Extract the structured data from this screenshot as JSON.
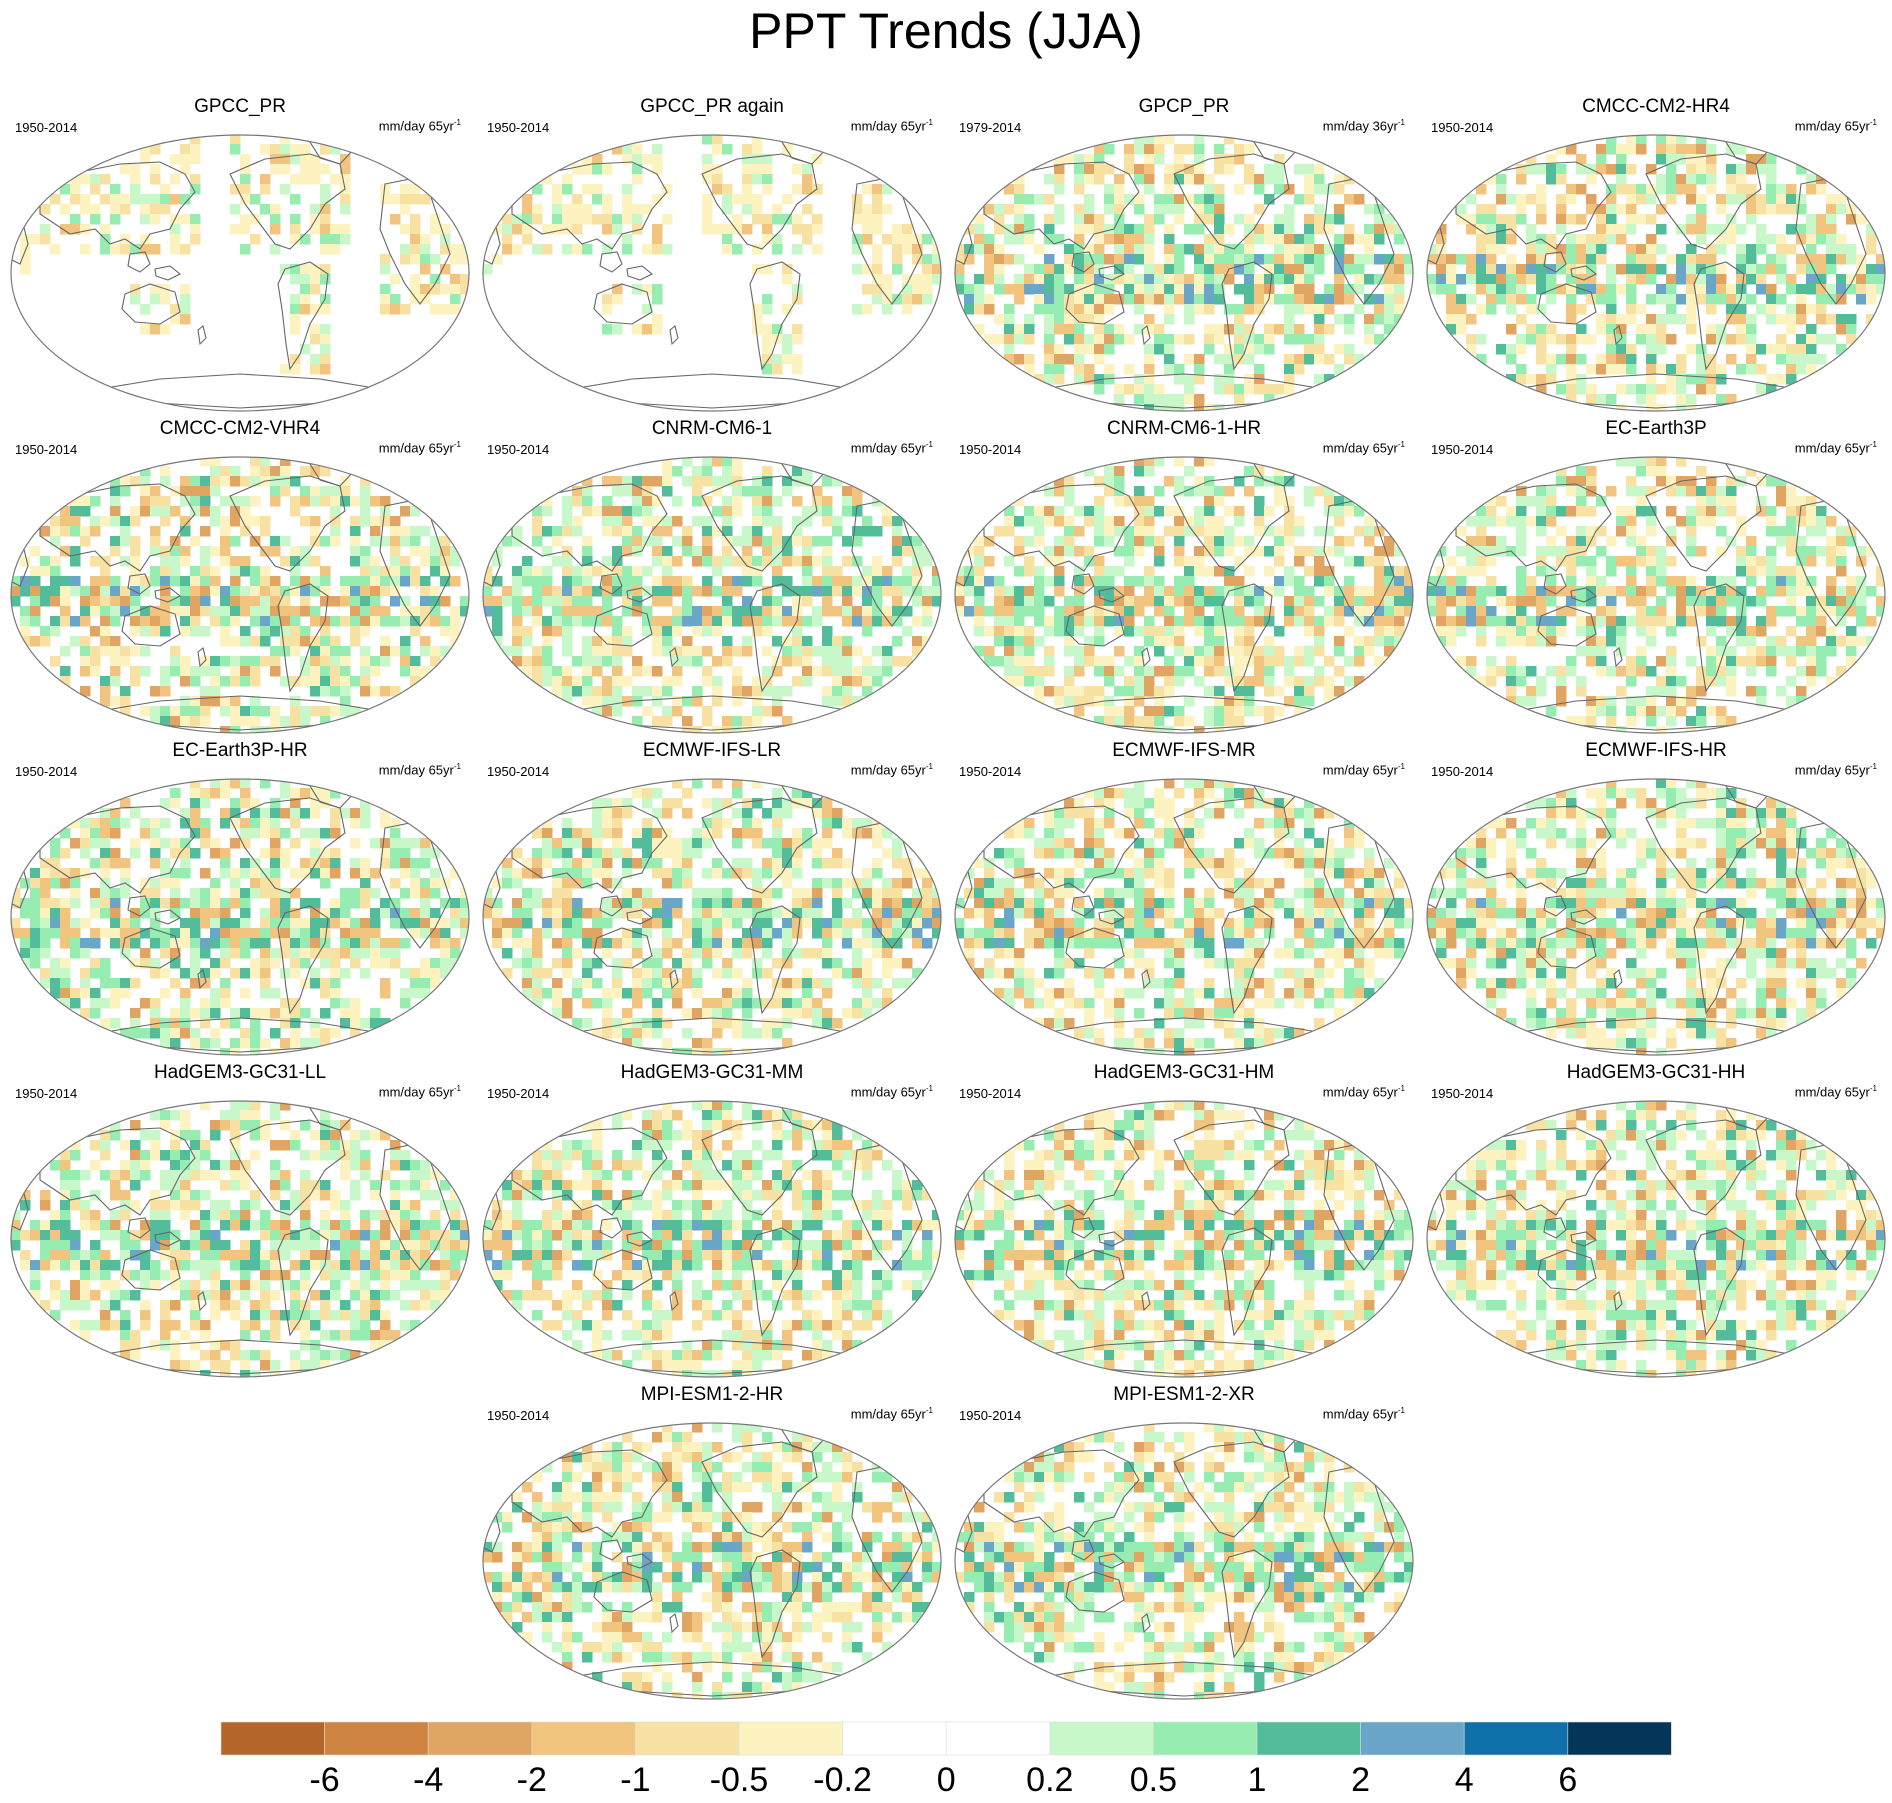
{
  "title": "PPT Trends (JJA)",
  "colors": [
    "#b5672b",
    "#cd8541",
    "#e1a563",
    "#f1c57f",
    "#f7e1a3",
    "#fdf3c0",
    "#ffffff",
    "#ffffff",
    "#c8f7c9",
    "#97ecb2",
    "#52bc9b",
    "#6aa6c7",
    "#0f6fa8",
    "#06355a"
  ],
  "panels": [
    {
      "title": "GPCC_PR",
      "period": "1950-2014",
      "units": "mm/day 65yr",
      "exp": "-1",
      "kind": "obs"
    },
    {
      "title": "GPCC_PR again",
      "period": "1950-2014",
      "units": "mm/day 65yr",
      "exp": "-1",
      "kind": "obs"
    },
    {
      "title": "GPCP_PR",
      "period": "1979-2014",
      "units": "mm/day 36yr",
      "exp": "-1",
      "kind": "model"
    },
    {
      "title": "CMCC-CM2-HR4",
      "period": "1950-2014",
      "units": "mm/day 65yr",
      "exp": "-1",
      "kind": "model"
    },
    {
      "title": "CMCC-CM2-VHR4",
      "period": "1950-2014",
      "units": "mm/day 65yr",
      "exp": "-1",
      "kind": "model"
    },
    {
      "title": "CNRM-CM6-1",
      "period": "1950-2014",
      "units": "mm/day 65yr",
      "exp": "-1",
      "kind": "model"
    },
    {
      "title": "CNRM-CM6-1-HR",
      "period": "1950-2014",
      "units": "mm/day 65yr",
      "exp": "-1",
      "kind": "model"
    },
    {
      "title": "EC-Earth3P",
      "period": "1950-2014",
      "units": "mm/day 65yr",
      "exp": "-1",
      "kind": "model"
    },
    {
      "title": "EC-Earth3P-HR",
      "period": "1950-2014",
      "units": "mm/day 65yr",
      "exp": "-1",
      "kind": "model"
    },
    {
      "title": "ECMWF-IFS-LR",
      "period": "1950-2014",
      "units": "mm/day 65yr",
      "exp": "-1",
      "kind": "model"
    },
    {
      "title": "ECMWF-IFS-MR",
      "period": "1950-2014",
      "units": "mm/day 65yr",
      "exp": "-1",
      "kind": "model"
    },
    {
      "title": "ECMWF-IFS-HR",
      "period": "1950-2014",
      "units": "mm/day 65yr",
      "exp": "-1",
      "kind": "model"
    },
    {
      "title": "HadGEM3-GC31-LL",
      "period": "1950-2014",
      "units": "mm/day 65yr",
      "exp": "-1",
      "kind": "model"
    },
    {
      "title": "HadGEM3-GC31-MM",
      "period": "1950-2014",
      "units": "mm/day 65yr",
      "exp": "-1",
      "kind": "model"
    },
    {
      "title": "HadGEM3-GC31-HM",
      "period": "1950-2014",
      "units": "mm/day 65yr",
      "exp": "-1",
      "kind": "model"
    },
    {
      "title": "HadGEM3-GC31-HH",
      "period": "1950-2014",
      "units": "mm/day 65yr",
      "exp": "-1",
      "kind": "model"
    },
    {
      "title": "MPI-ESM1-2-HR",
      "period": "1950-2014",
      "units": "mm/day 65yr",
      "exp": "-1",
      "kind": "model"
    },
    {
      "title": "MPI-ESM1-2-XR",
      "period": "1950-2014",
      "units": "mm/day 65yr",
      "exp": "-1",
      "kind": "model"
    }
  ],
  "colorbar": {
    "labels": [
      "-6",
      "-4",
      "-2",
      "-1",
      "-0.5",
      "-0.2",
      "0",
      "0.2",
      "0.5",
      "1",
      "2",
      "4",
      "6"
    ]
  },
  "chart_data": {
    "type": "heatmap",
    "title": "PPT Trends (JJA)",
    "colorbar_levels": [
      -6,
      -4,
      -2,
      -1,
      -0.5,
      -0.2,
      0,
      0.2,
      0.5,
      1,
      2,
      4,
      6
    ],
    "series": [
      {
        "name": "GPCC_PR",
        "period": "1950-2014"
      },
      {
        "name": "GPCC_PR again",
        "period": "1950-2014"
      },
      {
        "name": "GPCP_PR",
        "period": "1979-2014"
      },
      {
        "name": "CMCC-CM2-HR4",
        "period": "1950-2014"
      },
      {
        "name": "CMCC-CM2-VHR4",
        "period": "1950-2014"
      },
      {
        "name": "CNRM-CM6-1",
        "period": "1950-2014"
      },
      {
        "name": "CNRM-CM6-1-HR",
        "period": "1950-2014"
      },
      {
        "name": "EC-Earth3P",
        "period": "1950-2014"
      },
      {
        "name": "EC-Earth3P-HR",
        "period": "1950-2014"
      },
      {
        "name": "ECMWF-IFS-LR",
        "period": "1950-2014"
      },
      {
        "name": "ECMWF-IFS-MR",
        "period": "1950-2014"
      },
      {
        "name": "ECMWF-IFS-HR",
        "period": "1950-2014"
      },
      {
        "name": "HadGEM3-GC31-LL",
        "period": "1950-2014"
      },
      {
        "name": "HadGEM3-GC31-MM",
        "period": "1950-2014"
      },
      {
        "name": "HadGEM3-GC31-HM",
        "period": "1950-2014"
      },
      {
        "name": "HadGEM3-GC31-HH",
        "period": "1950-2014"
      },
      {
        "name": "MPI-ESM1-2-HR",
        "period": "1950-2014"
      },
      {
        "name": "MPI-ESM1-2-XR",
        "period": "1950-2014"
      }
    ]
  }
}
